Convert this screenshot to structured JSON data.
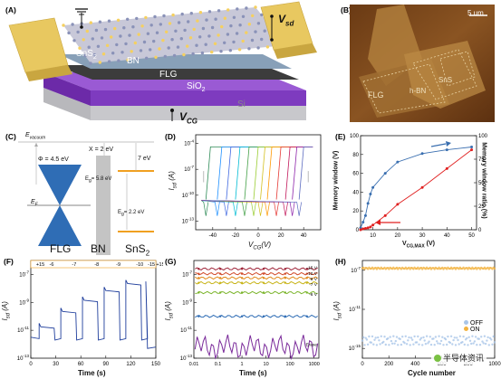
{
  "figure": {
    "panels": {
      "A": {
        "letter": "(A)",
        "labels": {
          "vsd": "V",
          "vsd_sub": "sd",
          "sns2": "SnS",
          "sns2_sub": "2",
          "bn": "BN",
          "flg": "FLG",
          "sio2": "SiO",
          "sio2_sub": "2",
          "si": "Si",
          "vcg": "V",
          "vcg_sub": "CG"
        }
      },
      "B": {
        "letter": "(B)",
        "scale": "5 um",
        "labels": {
          "flg": "FLG",
          "hbn": "h-BN",
          "sns2": "SnS"
        }
      },
      "C": {
        "letter": "(C)",
        "labels": {
          "evac": "E",
          "evac_sub": "vacuum",
          "phi": "Φ = 4.5 eV",
          "chi": "X = 2 eV",
          "ef": "E",
          "ef_sub": "F",
          "eg_bn": "E",
          "eg_bn_sub": "g",
          "eg_bn_val": "= 5.8 eV",
          "eg_sns": "E",
          "eg_sns_sub": "g",
          "eg_sns_val": "= 2.2 eV",
          "seven": "7 eV",
          "flg": "FLG",
          "bn": "BN",
          "sns2": "SnS"
        }
      },
      "D": {
        "letter": "(D)",
        "xlabel": "V",
        "xlabel_sub": "CG",
        "xlabel_unit": "(V)",
        "ylabel": "I",
        "ylabel_sub": "sd",
        "ylabel_unit": " (A)",
        "xticks": [
          "-40",
          "-20",
          "0",
          "20",
          "40"
        ],
        "yticks": [
          "10",
          "10",
          "10",
          "10"
        ],
        "yexp": [
          "-4",
          "-7",
          "-10",
          "-13"
        ]
      },
      "E": {
        "letter": "(E)",
        "xlabel": "V",
        "xlabel_sub": "CG,MAX",
        "xlabel_unit": " (V)",
        "ylabel_left": "Memory window (V)",
        "ylabel_right": "Memory window ratio (%)",
        "xticks": [
          "10",
          "20",
          "30",
          "40",
          "50"
        ],
        "yticks_left": [
          "0",
          "20",
          "40",
          "60",
          "80",
          "100"
        ],
        "yticks_right": [
          "0",
          "25",
          "50",
          "75",
          "100"
        ]
      },
      "F": {
        "letter": "(F)",
        "pulses": [
          "+15",
          "-6",
          "-7",
          "-8",
          "-9",
          "-10",
          "-15",
          "+15"
        ],
        "xlabel": "Time (s)",
        "ylabel": "I",
        "ylabel_sub": "sd",
        "ylabel_unit": " (A)",
        "xticks": [
          "0",
          "30",
          "60",
          "90",
          "120",
          "150"
        ],
        "yticks": [
          "10",
          "10",
          "10",
          "10"
        ],
        "yexp": [
          "-7",
          "-9",
          "-11",
          "-13"
        ]
      },
      "G": {
        "letter": "(G)",
        "series_labels": [
          "-15 V",
          "-10 V",
          "-8 V",
          "-7 V",
          "-6 V",
          "Erase"
        ],
        "xlabel": "Time (s)",
        "ylabel": "I",
        "ylabel_sub": "sd",
        "ylabel_unit": " (A)",
        "xticks": [
          "0.01",
          "0.1",
          "1",
          "10",
          "100",
          "1000"
        ],
        "yticks": [
          "10",
          "10",
          "10",
          "10"
        ],
        "yexp": [
          "-7",
          "-9",
          "-11",
          "-13"
        ]
      },
      "H": {
        "letter": "(H)",
        "legend": [
          "OFF",
          "ON"
        ],
        "xlabel": "Cycle number",
        "ylabel": "I",
        "ylabel_sub": "sd",
        "ylabel_unit": " (A)",
        "xticks": [
          "0",
          "200",
          "400",
          "600",
          "800",
          "1000"
        ],
        "yticks": [
          "10",
          "10",
          "10"
        ],
        "yexp": [
          "-7",
          "-11",
          "-15"
        ]
      }
    },
    "watermark": "半导体资讯"
  },
  "chart_data": [
    {
      "panel": "E",
      "type": "line",
      "x_label": "V_CG,MAX (V)",
      "xlim": [
        5,
        52
      ],
      "ylim_left": [
        0,
        100
      ],
      "ylim_right": [
        0,
        100
      ],
      "series": [
        {
          "name": "Memory window ratio (%)",
          "axis": "right",
          "color": "#3a6fb0",
          "x": [
            5,
            6,
            7,
            8,
            9,
            10,
            15,
            20,
            30,
            40,
            50
          ],
          "y": [
            2,
            8,
            15,
            28,
            38,
            45,
            60,
            72,
            81,
            85,
            88
          ]
        },
        {
          "name": "Memory window (V)",
          "axis": "left",
          "color": "#e02020",
          "x": [
            5,
            6,
            7,
            8,
            9,
            10,
            15,
            20,
            30,
            40,
            50
          ],
          "y": [
            0,
            1,
            1.5,
            2,
            3,
            5,
            15,
            27,
            45,
            65,
            85
          ]
        }
      ]
    },
    {
      "panel": "H",
      "type": "scatter",
      "xlim": [
        0,
        1000
      ],
      "series": [
        {
          "name": "OFF",
          "color": "#a9c5e8",
          "level_exp": -14.2
        },
        {
          "name": "ON",
          "color": "#f3b340",
          "level_exp": -6.8
        }
      ]
    }
  ]
}
